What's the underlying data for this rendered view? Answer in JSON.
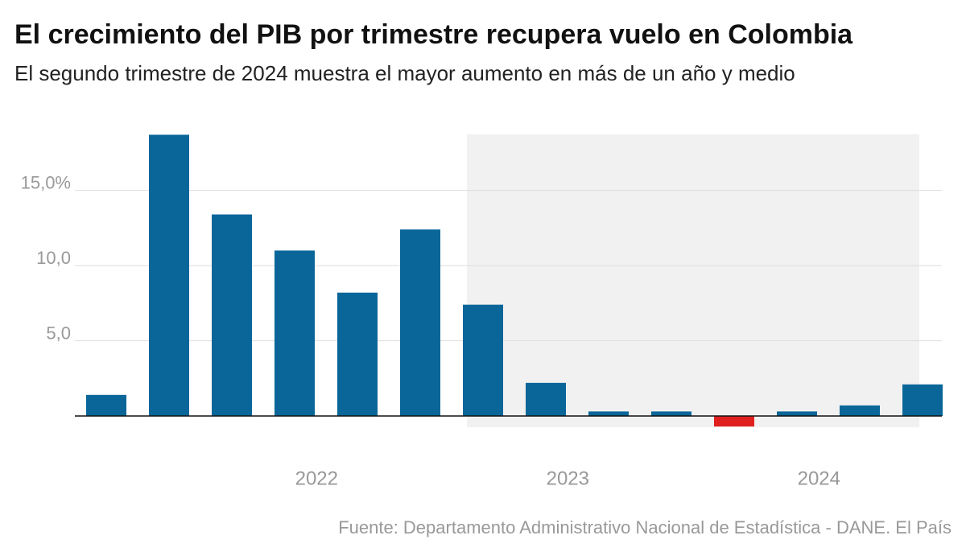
{
  "chart_data": {
    "type": "bar",
    "title": "El crecimiento del PIB por trimestre recupera vuelo en Colombia",
    "subtitle": "El segundo trimestre de 2024 muestra el mayor aumento en más de un año y medio",
    "source": "Fuente: Departamento Administrativo Nacional de Estadística - DANE. El País",
    "categories": [
      null,
      null,
      null,
      "2022",
      null,
      null,
      null,
      "2023",
      null,
      null,
      null,
      "2024",
      null,
      null
    ],
    "values": [
      1.4,
      18.7,
      13.4,
      11.0,
      8.2,
      12.4,
      7.4,
      2.2,
      0.3,
      0.3,
      -0.7,
      0.3,
      0.7,
      2.1
    ],
    "color": "#0a6699",
    "negative_color": "#e0201f",
    "ylim": [
      -1.5,
      19.1
    ],
    "yticks": [
      {
        "value": 5,
        "label": "5,0"
      },
      {
        "value": 10,
        "label": "10,0"
      },
      {
        "value": 15,
        "label": "15,0%"
      }
    ],
    "grid": true
  }
}
